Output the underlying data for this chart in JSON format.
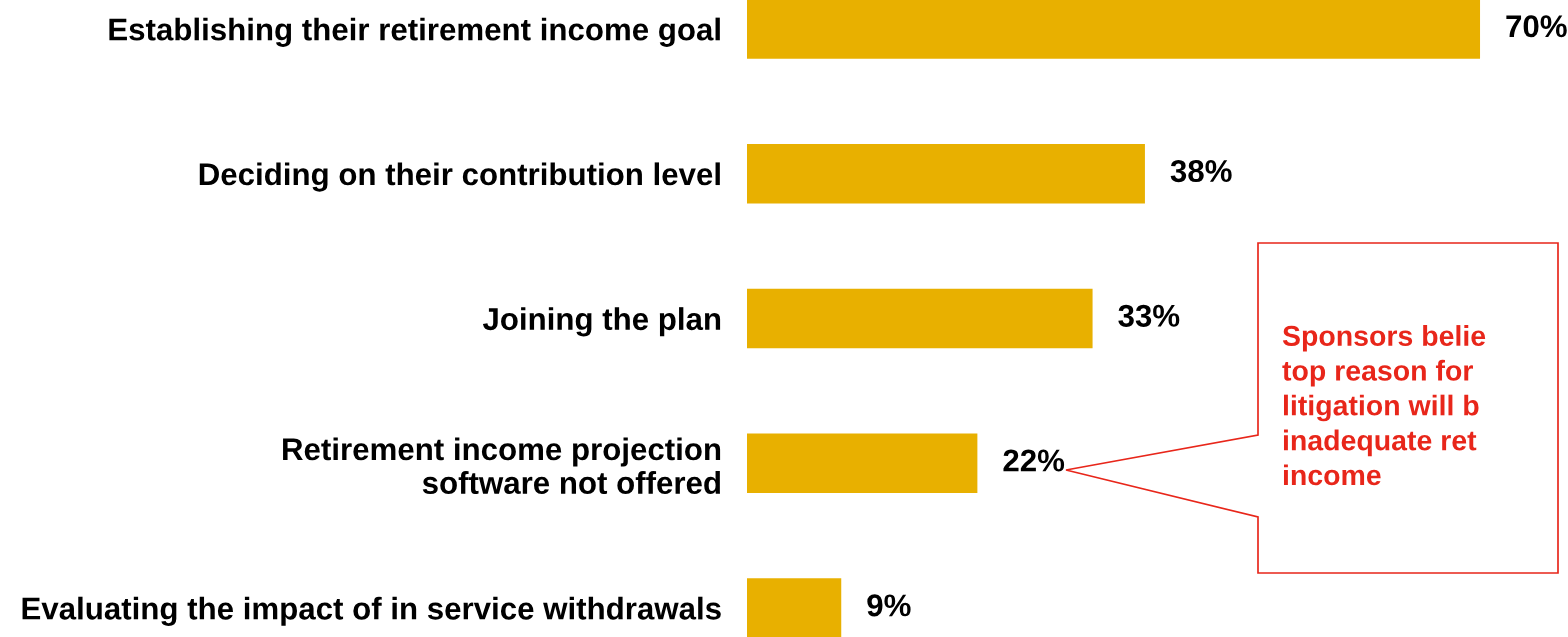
{
  "chart_data": {
    "type": "bar",
    "orientation": "horizontal",
    "categories": [
      "Establishing their retirement income goal",
      "Deciding on their contribution level",
      "Joining the plan",
      "Retirement income projection\nsoftware not offered",
      "Evaluating the impact of in service withdrawals"
    ],
    "values": [
      70,
      38,
      33,
      22,
      9
    ],
    "color": "#e8b000",
    "value_labels": [
      "70%",
      "38%",
      "33%",
      "22%",
      "9%"
    ],
    "annotations": [
      "Sponsors belie\ntop reason for\nlitigation will b\ninadequate ret\nincome"
    ]
  }
}
